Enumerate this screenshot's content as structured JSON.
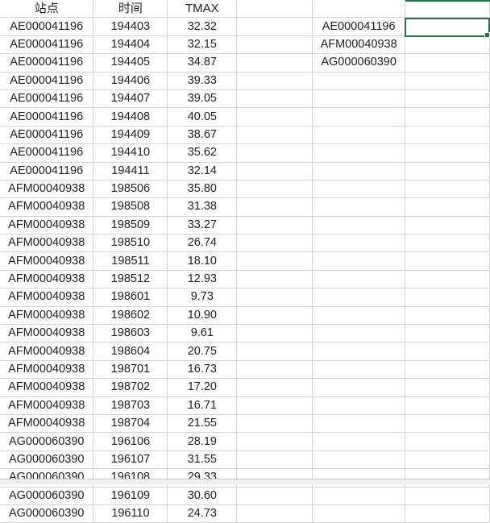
{
  "headers": [
    "站点",
    "时间",
    "TMAX",
    "",
    "",
    ""
  ],
  "rows": [
    [
      "AE000041196",
      "194403",
      "32.32"
    ],
    [
      "AE000041196",
      "194404",
      "32.15"
    ],
    [
      "AE000041196",
      "194405",
      "34.87"
    ],
    [
      "AE000041196",
      "194406",
      "39.33"
    ],
    [
      "AE000041196",
      "194407",
      "39.05"
    ],
    [
      "AE000041196",
      "194408",
      "40.05"
    ],
    [
      "AE000041196",
      "194409",
      "38.67"
    ],
    [
      "AE000041196",
      "194410",
      "35.62"
    ],
    [
      "AE000041196",
      "194411",
      "32.14"
    ],
    [
      "AFM00040938",
      "198506",
      "35.80"
    ],
    [
      "AFM00040938",
      "198508",
      "31.38"
    ],
    [
      "AFM00040938",
      "198509",
      "33.27"
    ],
    [
      "AFM00040938",
      "198510",
      "26.74"
    ],
    [
      "AFM00040938",
      "198511",
      "18.10"
    ],
    [
      "AFM00040938",
      "198512",
      "12.93"
    ],
    [
      "AFM00040938",
      "198601",
      "9.73"
    ],
    [
      "AFM00040938",
      "198602",
      "10.90"
    ],
    [
      "AFM00040938",
      "198603",
      "9.61"
    ],
    [
      "AFM00040938",
      "198604",
      "20.75"
    ],
    [
      "AFM00040938",
      "198701",
      "16.73"
    ],
    [
      "AFM00040938",
      "198702",
      "17.20"
    ],
    [
      "AFM00040938",
      "198703",
      "16.71"
    ],
    [
      "AFM00040938",
      "198704",
      "21.55"
    ],
    [
      "AG000060390",
      "196106",
      "28.19"
    ],
    [
      "AG000060390",
      "196107",
      "31.55"
    ],
    [
      "AG000060390",
      "196108",
      "29.33"
    ],
    [
      "AG000060390",
      "196109",
      "30.60"
    ],
    [
      "AG000060390",
      "196110",
      "24.73"
    ]
  ],
  "unique_stations": [
    "AE000041196",
    "AFM00040938",
    "AG000060390"
  ],
  "accent_color": "#217346"
}
